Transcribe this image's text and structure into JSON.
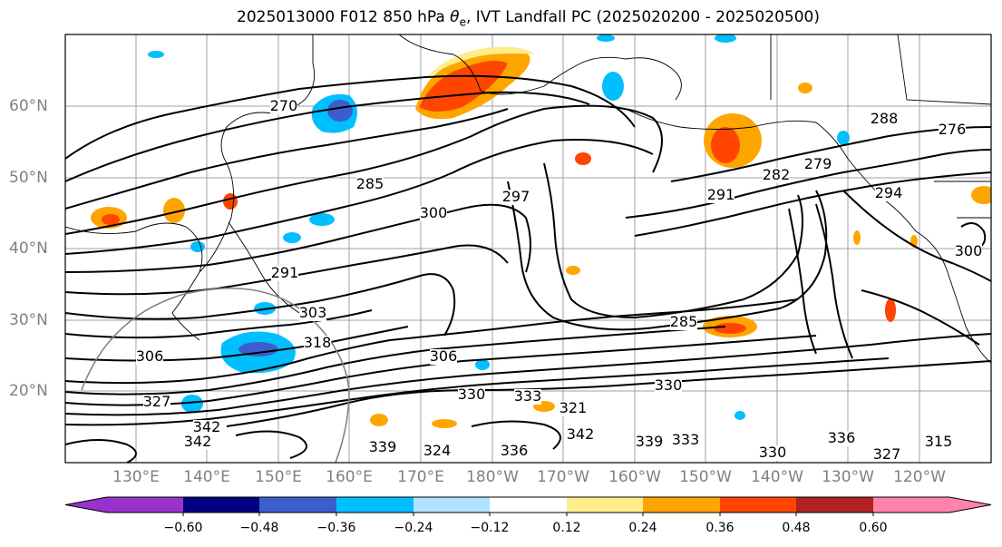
{
  "title": "2025013000 F012 850 hPa θe, IVT Landfall PC (2025020200 - 2025020500)",
  "title_prefix": "2025013000 F012 850 hPa ",
  "title_symbol": "θ",
  "title_subscript": "e",
  "title_suffix": ", IVT Landfall PC (2025020200 - 2025020500)",
  "lat_labels": [
    "60°N",
    "50°N",
    "40°N",
    "30°N",
    "20°N"
  ],
  "lon_labels": [
    "130°E",
    "140°E",
    "150°E",
    "160°E",
    "170°E",
    "180°W",
    "170°W",
    "160°W",
    "150°W",
    "140°W",
    "130°W",
    "120°W"
  ],
  "contour_labels": [
    "270",
    "285",
    "291",
    "303",
    "306",
    "306",
    "318",
    "327",
    "342",
    "342",
    "339",
    "324",
    "330",
    "336",
    "333",
    "342",
    "339",
    "333",
    "330",
    "336",
    "327",
    "315",
    "285",
    "282",
    "279",
    "276",
    "288",
    "291",
    "294",
    "300",
    "300",
    "297",
    "321",
    "330"
  ],
  "colorbar": {
    "ticks": [
      "−0.60",
      "−0.48",
      "−0.36",
      "−0.24",
      "−0.12",
      "0.12",
      "0.24",
      "0.36",
      "0.48",
      "0.60"
    ],
    "colors": [
      "#9932cc",
      "#000080",
      "#3a5fcd",
      "#00bfff",
      "#b0e2ff",
      "#ffffff",
      "#ffec8b",
      "#ffa500",
      "#ff4500",
      "#b22222",
      "#ff82ab"
    ]
  },
  "colors": {
    "contour": "#000000",
    "grid": "#a0a0a0",
    "axis_label": "#808080"
  }
}
